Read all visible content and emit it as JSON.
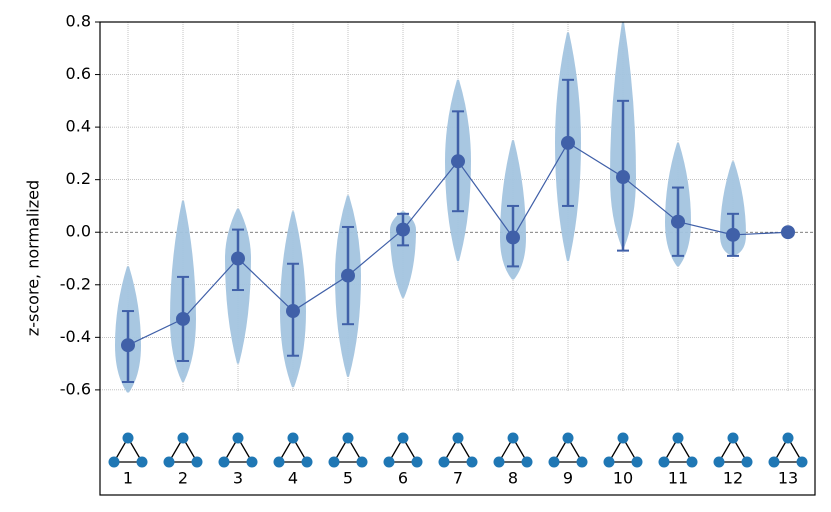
{
  "chart_data": {
    "type": "violin",
    "y_label": "z-score, normalized",
    "categories": [
      "1",
      "2",
      "3",
      "4",
      "5",
      "6",
      "7",
      "8",
      "9",
      "10",
      "11",
      "12",
      "13"
    ],
    "means": [
      -0.43,
      -0.33,
      -0.1,
      -0.3,
      -0.165,
      0.01,
      0.27,
      -0.02,
      0.34,
      0.21,
      0.04,
      -0.01,
      0.0
    ],
    "err_low": [
      -0.57,
      -0.49,
      -0.22,
      -0.47,
      -0.35,
      -0.05,
      0.08,
      -0.13,
      0.1,
      -0.07,
      -0.09,
      -0.09,
      0.0
    ],
    "err_high": [
      -0.3,
      -0.17,
      0.01,
      -0.12,
      0.02,
      0.07,
      0.46,
      0.1,
      0.58,
      0.5,
      0.17,
      0.07,
      0.0
    ],
    "violin_min": [
      -0.61,
      -0.57,
      -0.5,
      -0.59,
      -0.55,
      -0.25,
      -0.11,
      -0.18,
      -0.11,
      -0.06,
      -0.13,
      -0.09,
      0.0
    ],
    "violin_max": [
      -0.13,
      0.12,
      0.09,
      0.08,
      0.14,
      0.08,
      0.58,
      0.35,
      0.76,
      0.8,
      0.34,
      0.27,
      0.0
    ],
    "violin_color": "#a3c4df",
    "line_color": "#4060a8",
    "node_color": "#1f77b4",
    "ylim": [
      -1.0,
      0.8
    ],
    "yticks": [
      0.8,
      0.6,
      0.4,
      0.2,
      {
        "value": 0,
        "label": "0.0"
      },
      -0.2,
      -0.4,
      -0.6
    ],
    "grid": true
  }
}
